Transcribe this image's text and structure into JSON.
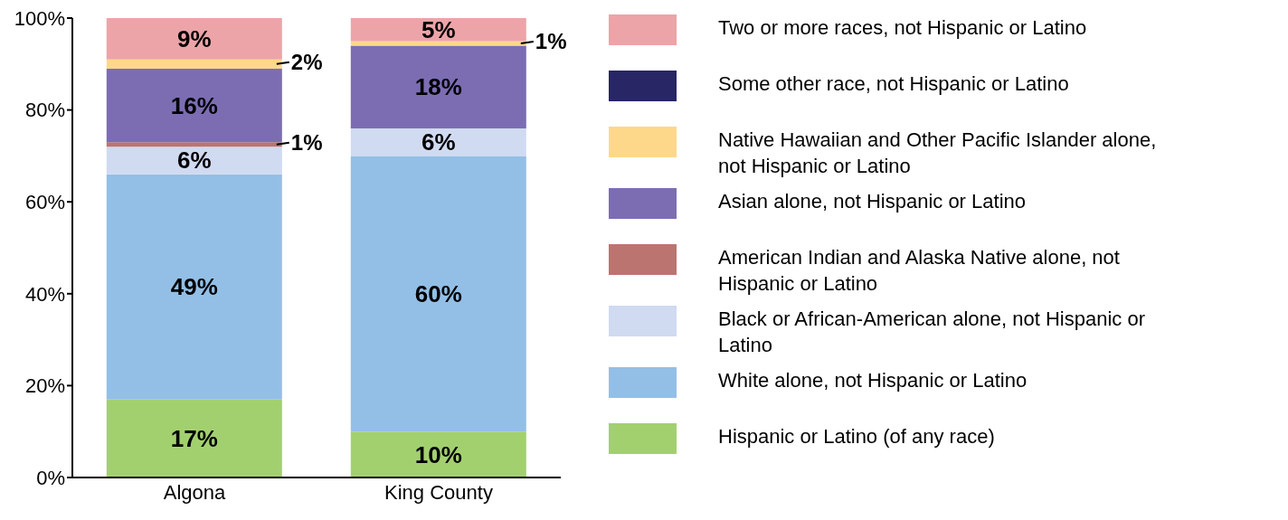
{
  "chart_data": {
    "type": "bar",
    "stacked": true,
    "categories": [
      "Algona",
      "King County"
    ],
    "ylim": [
      0,
      100
    ],
    "yticks": [
      {
        "value": 0,
        "label": "0%"
      },
      {
        "value": 20,
        "label": "20%"
      },
      {
        "value": 40,
        "label": "40%"
      },
      {
        "value": 60,
        "label": "60%"
      },
      {
        "value": 80,
        "label": "80%"
      },
      {
        "value": 100,
        "label": "100%"
      }
    ],
    "grid": false,
    "legend": "right",
    "series": [
      {
        "name": "Hispanic or Latino (of any race)",
        "color": "#a3d06f",
        "values": [
          17,
          10
        ],
        "value_labels": [
          "17%",
          "10%"
        ]
      },
      {
        "name": "White alone, not Hispanic or Latino",
        "color": "#93bfe6",
        "values": [
          49,
          60
        ],
        "value_labels": [
          "49%",
          "60%"
        ]
      },
      {
        "name": "Black or African-American alone, not Hispanic or Latino",
        "color": "#d0daf0",
        "values": [
          6,
          6
        ],
        "value_labels": [
          "6%",
          "6%"
        ]
      },
      {
        "name": "American Indian and Alaska Native alone, not Hispanic or Latino",
        "color": "#bc7470",
        "values": [
          1,
          0
        ],
        "value_labels": [
          "1%",
          null
        ]
      },
      {
        "name": "Asian alone, not Hispanic or Latino",
        "color": "#7c6db3",
        "values": [
          16,
          18
        ],
        "value_labels": [
          "16%",
          "18%"
        ]
      },
      {
        "name": "Native Hawaiian and Other Pacific Islander alone, not Hispanic or Latino",
        "color": "#fed88a",
        "values": [
          2,
          1
        ],
        "value_labels": [
          "2%",
          "1%"
        ]
      },
      {
        "name": "Some other race, not Hispanic or Latino",
        "color": "#282664",
        "values": [
          0,
          0
        ],
        "value_labels": [
          null,
          null
        ]
      },
      {
        "name": "Two or more races, not Hispanic or Latino",
        "color": "#eca4a8",
        "values": [
          9,
          5
        ],
        "value_labels": [
          "9%",
          "5%"
        ]
      }
    ]
  }
}
